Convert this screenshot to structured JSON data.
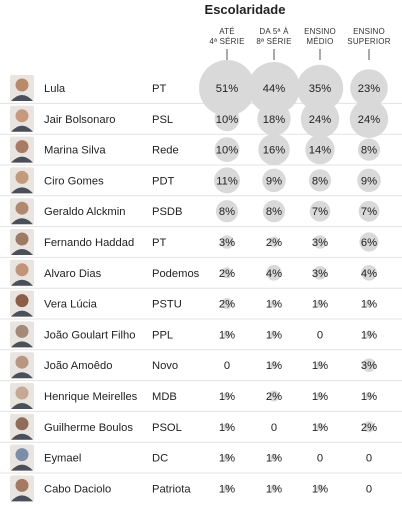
{
  "chart_data": {
    "type": "table",
    "title": "Escolaridade",
    "columns": [
      {
        "line1": "ATÉ",
        "line2": "4ª SÉRIE"
      },
      {
        "line1": "DA 5ª À",
        "line2": "8ª SÉRIE"
      },
      {
        "line1": "ENSINO",
        "line2": "MÉDIO"
      },
      {
        "line1": "ENSINO",
        "line2": "SUPERIOR"
      }
    ],
    "rows": [
      {
        "name": "Lula",
        "party": "PT",
        "values": [
          51,
          44,
          35,
          23
        ]
      },
      {
        "name": "Jair Bolsonaro",
        "party": "PSL",
        "values": [
          10,
          18,
          24,
          24
        ]
      },
      {
        "name": "Marina Silva",
        "party": "Rede",
        "values": [
          10,
          16,
          14,
          8
        ]
      },
      {
        "name": "Ciro Gomes",
        "party": "PDT",
        "values": [
          11,
          9,
          8,
          9
        ]
      },
      {
        "name": "Geraldo Alckmin",
        "party": "PSDB",
        "values": [
          8,
          8,
          7,
          7
        ]
      },
      {
        "name": "Fernando Haddad",
        "party": "PT",
        "values": [
          3,
          2,
          3,
          6
        ]
      },
      {
        "name": "Alvaro Dias",
        "party": "Podemos",
        "values": [
          2,
          4,
          3,
          4
        ]
      },
      {
        "name": "Vera Lúcia",
        "party": "PSTU",
        "values": [
          2,
          1,
          1,
          1
        ]
      },
      {
        "name": "João Goulart Filho",
        "party": "PPL",
        "values": [
          1,
          1,
          0,
          1
        ]
      },
      {
        "name": "João Amoêdo",
        "party": "Novo",
        "values": [
          0,
          1,
          1,
          3
        ]
      },
      {
        "name": "Henrique Meirelles",
        "party": "MDB",
        "values": [
          1,
          2,
          1,
          1
        ]
      },
      {
        "name": "Guilherme Boulos",
        "party": "PSOL",
        "values": [
          1,
          0,
          1,
          2
        ]
      },
      {
        "name": "Eymael",
        "party": "DC",
        "values": [
          1,
          1,
          0,
          0
        ]
      },
      {
        "name": "Cabo Daciolo",
        "party": "Patriota",
        "values": [
          1,
          1,
          1,
          0
        ]
      }
    ],
    "value_suffix": "%",
    "bubble_color": "#d9d9d9",
    "portrait_colors": [
      "#b98a6a",
      "#c79a80",
      "#a87c64",
      "#c49a7c",
      "#b08870",
      "#9c7a66",
      "#c2957a",
      "#8c5e48",
      "#a48a78",
      "#b89682",
      "#c6a894",
      "#8f6d58",
      "#7d8fa8",
      "#a57a62"
    ]
  }
}
